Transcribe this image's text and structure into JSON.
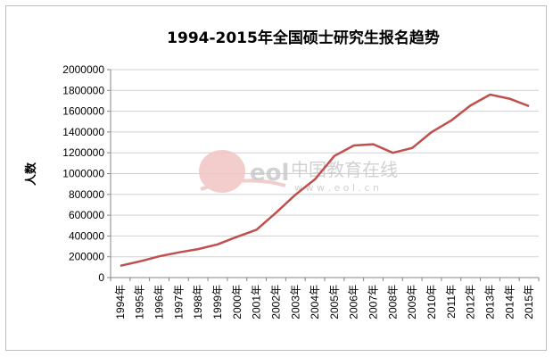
{
  "chart_data": {
    "type": "line",
    "title": "1994-2015年全国硕士研究生报名趋势",
    "ylabel": "人数",
    "xlabel": "",
    "ylim": [
      0,
      2000000
    ],
    "yticks": [
      0,
      200000,
      400000,
      600000,
      800000,
      1000000,
      1200000,
      1400000,
      1600000,
      1800000,
      2000000
    ],
    "grid": true,
    "legend": "none",
    "line_color": "#c0504d",
    "categories": [
      "1994年",
      "1995年",
      "1996年",
      "1997年",
      "1998年",
      "1999年",
      "2000年",
      "2001年",
      "2002年",
      "2003年",
      "2004年",
      "2005年",
      "2006年",
      "2007年",
      "2008年",
      "2009年",
      "2010年",
      "2011年",
      "2012年",
      "2013年",
      "2014年",
      "2015年"
    ],
    "series": [
      {
        "values": [
          113000,
          155000,
          204000,
          242000,
          274000,
          319000,
          392000,
          460000,
          624000,
          797000,
          945000,
          1170000,
          1270000,
          1282000,
          1200000,
          1246000,
          1400000,
          1510000,
          1656000,
          1760000,
          1720000,
          1649000
        ]
      }
    ]
  },
  "watermark": {
    "logo_text": "eol",
    "name": "中国教育在线",
    "url": "w w w . e o l . c n"
  }
}
